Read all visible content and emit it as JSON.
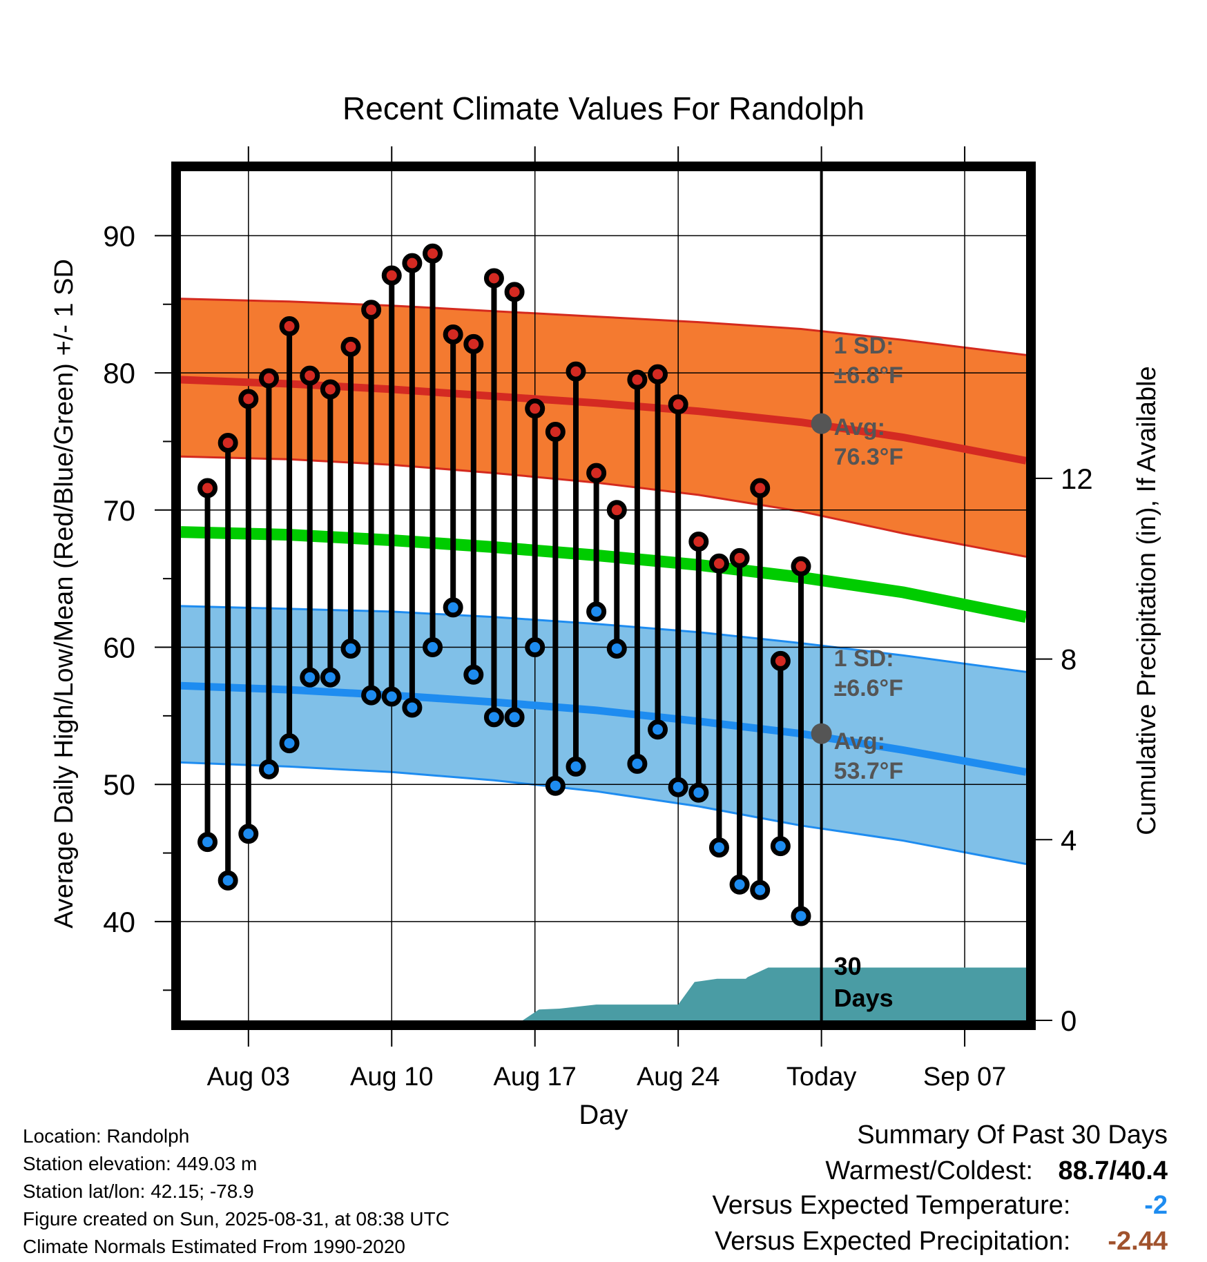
{
  "chart_data": {
    "type": "line",
    "title": "Recent Climate Values For Randolph",
    "xlabel": "Day",
    "ylabel_left": "Average Daily High/Low/Mean (Red/Blue/Green) +/- 1 SD",
    "ylabel_right": "Cumulative Precipitation (in), If Available",
    "x_ticks": [
      "Aug 03",
      "Aug 10",
      "Aug 17",
      "Aug 24",
      "Today",
      "Sep 07"
    ],
    "x_tick_days": [
      3,
      10,
      17,
      24,
      31,
      38
    ],
    "xlim_days": [
      -0.3,
      41
    ],
    "ylim_left": [
      32.8,
      94.7
    ],
    "y_ticks_left": [
      40,
      50,
      60,
      70,
      80,
      90
    ],
    "ylim_right": [
      0,
      18.8
    ],
    "y_ticks_right": [
      0,
      4,
      8,
      12
    ],
    "days": [
      1,
      2,
      3,
      4,
      5,
      6,
      7,
      8,
      9,
      10,
      11,
      12,
      13,
      14,
      15,
      16,
      17,
      18,
      19,
      20,
      21,
      22,
      23,
      24,
      25,
      26,
      27,
      28,
      29,
      30
    ],
    "daily_high": [
      71.6,
      74.9,
      78.1,
      79.6,
      83.4,
      79.8,
      78.8,
      81.9,
      84.6,
      87.1,
      88.0,
      88.7,
      82.8,
      82.1,
      86.9,
      85.9,
      77.4,
      75.7,
      80.1,
      72.7,
      70.0,
      79.5,
      79.9,
      77.7,
      67.7,
      66.1,
      66.5,
      71.6,
      59.0,
      65.9
    ],
    "daily_low": [
      45.8,
      43.0,
      46.4,
      51.1,
      53.0,
      57.8,
      57.8,
      59.9,
      56.5,
      56.4,
      55.6,
      60.0,
      62.9,
      58.0,
      54.9,
      54.9,
      60.0,
      49.9,
      51.3,
      62.6,
      59.9,
      51.5,
      54.0,
      49.8,
      49.4,
      45.4,
      42.7,
      42.3,
      45.5,
      40.4
    ],
    "normal_curve_days": [
      -0.3,
      5,
      10,
      15,
      20,
      25,
      30,
      35,
      41
    ],
    "normal_high_avg": [
      79.5,
      79.2,
      78.8,
      78.3,
      77.8,
      77.2,
      76.4,
      75.3,
      73.6
    ],
    "normal_high_sd": 6.8,
    "normal_high_upper": [
      85.4,
      85.2,
      84.9,
      84.5,
      84.1,
      83.7,
      83.2,
      82.4,
      81.3
    ],
    "normal_high_lower": [
      73.9,
      73.7,
      73.3,
      72.7,
      72.0,
      71.1,
      69.9,
      68.3,
      66.6
    ],
    "normal_low_avg": [
      57.2,
      56.9,
      56.5,
      56.0,
      55.4,
      54.6,
      53.7,
      52.5,
      50.9
    ],
    "normal_low_sd": 6.6,
    "normal_low_upper": [
      63.0,
      62.8,
      62.6,
      62.2,
      61.7,
      61.1,
      60.3,
      59.4,
      58.2
    ],
    "normal_low_lower": [
      51.6,
      51.3,
      50.9,
      50.3,
      49.5,
      48.4,
      47.0,
      45.9,
      44.2
    ],
    "normal_mean": [
      68.4,
      68.2,
      67.8,
      67.3,
      66.7,
      66.0,
      65.1,
      64.0,
      62.2
    ],
    "precip_days": [
      -0.3,
      16.4,
      17.2,
      18.2,
      20.0,
      24.0,
      24.8,
      25.9,
      27.3,
      27.4,
      28.4,
      41
    ],
    "precip_cumulative": [
      0,
      0,
      0.24,
      0.26,
      0.35,
      0.35,
      0.85,
      0.92,
      0.92,
      0.96,
      1.17,
      1.17
    ],
    "today_high_avg_label": "Avg:",
    "today_high_avg_value": "76.3°F",
    "today_high_avg_num": 76.3,
    "today_high_sd_label": "1 SD:",
    "today_high_sd_value": "±6.8°F",
    "today_low_avg_label": "Avg:",
    "today_low_avg_value": "53.7°F",
    "today_low_avg_num": 53.7,
    "today_low_sd_label": "1 SD:",
    "today_low_sd_value": "±6.6°F",
    "window_label_line1": "30",
    "window_label_line2": "Days",
    "legend": "none",
    "grid": true
  },
  "colors": {
    "high_band": "#f47a30",
    "high_band_edge": "#d42a1e",
    "high_avg_line": "#d42a22",
    "low_band": "#80c0e8",
    "low_band_edge": "#1e8cf0",
    "low_avg_line": "#1e8cf0",
    "mean_line": "#00cc00",
    "precip_fill": "#4a9ca4",
    "high_marker": "#d42a22",
    "low_marker": "#1e8cf0",
    "annotation_text": "#555555",
    "today_marker": "#555555",
    "precip_delta": "#a0522d",
    "temp_delta": "#1e8cf0"
  },
  "info": {
    "location": "Location: Randolph",
    "elevation": "Station elevation: 449.03 m",
    "latlon": "Station lat/lon: 42.15; -78.9",
    "created": "Figure created on Sun, 2025-08-31, at 08:38 UTC",
    "normals": "Climate Normals Estimated From 1990-2020"
  },
  "summary": {
    "heading": "Summary Of Past 30 Days",
    "warm_cold_label": "Warmest/Coldest:",
    "warm_cold_value": "88.7/40.4",
    "temp_label": "Versus Expected Temperature:",
    "temp_value": "-2",
    "precip_label": "Versus Expected Precipitation:",
    "precip_value": "-2.44"
  }
}
